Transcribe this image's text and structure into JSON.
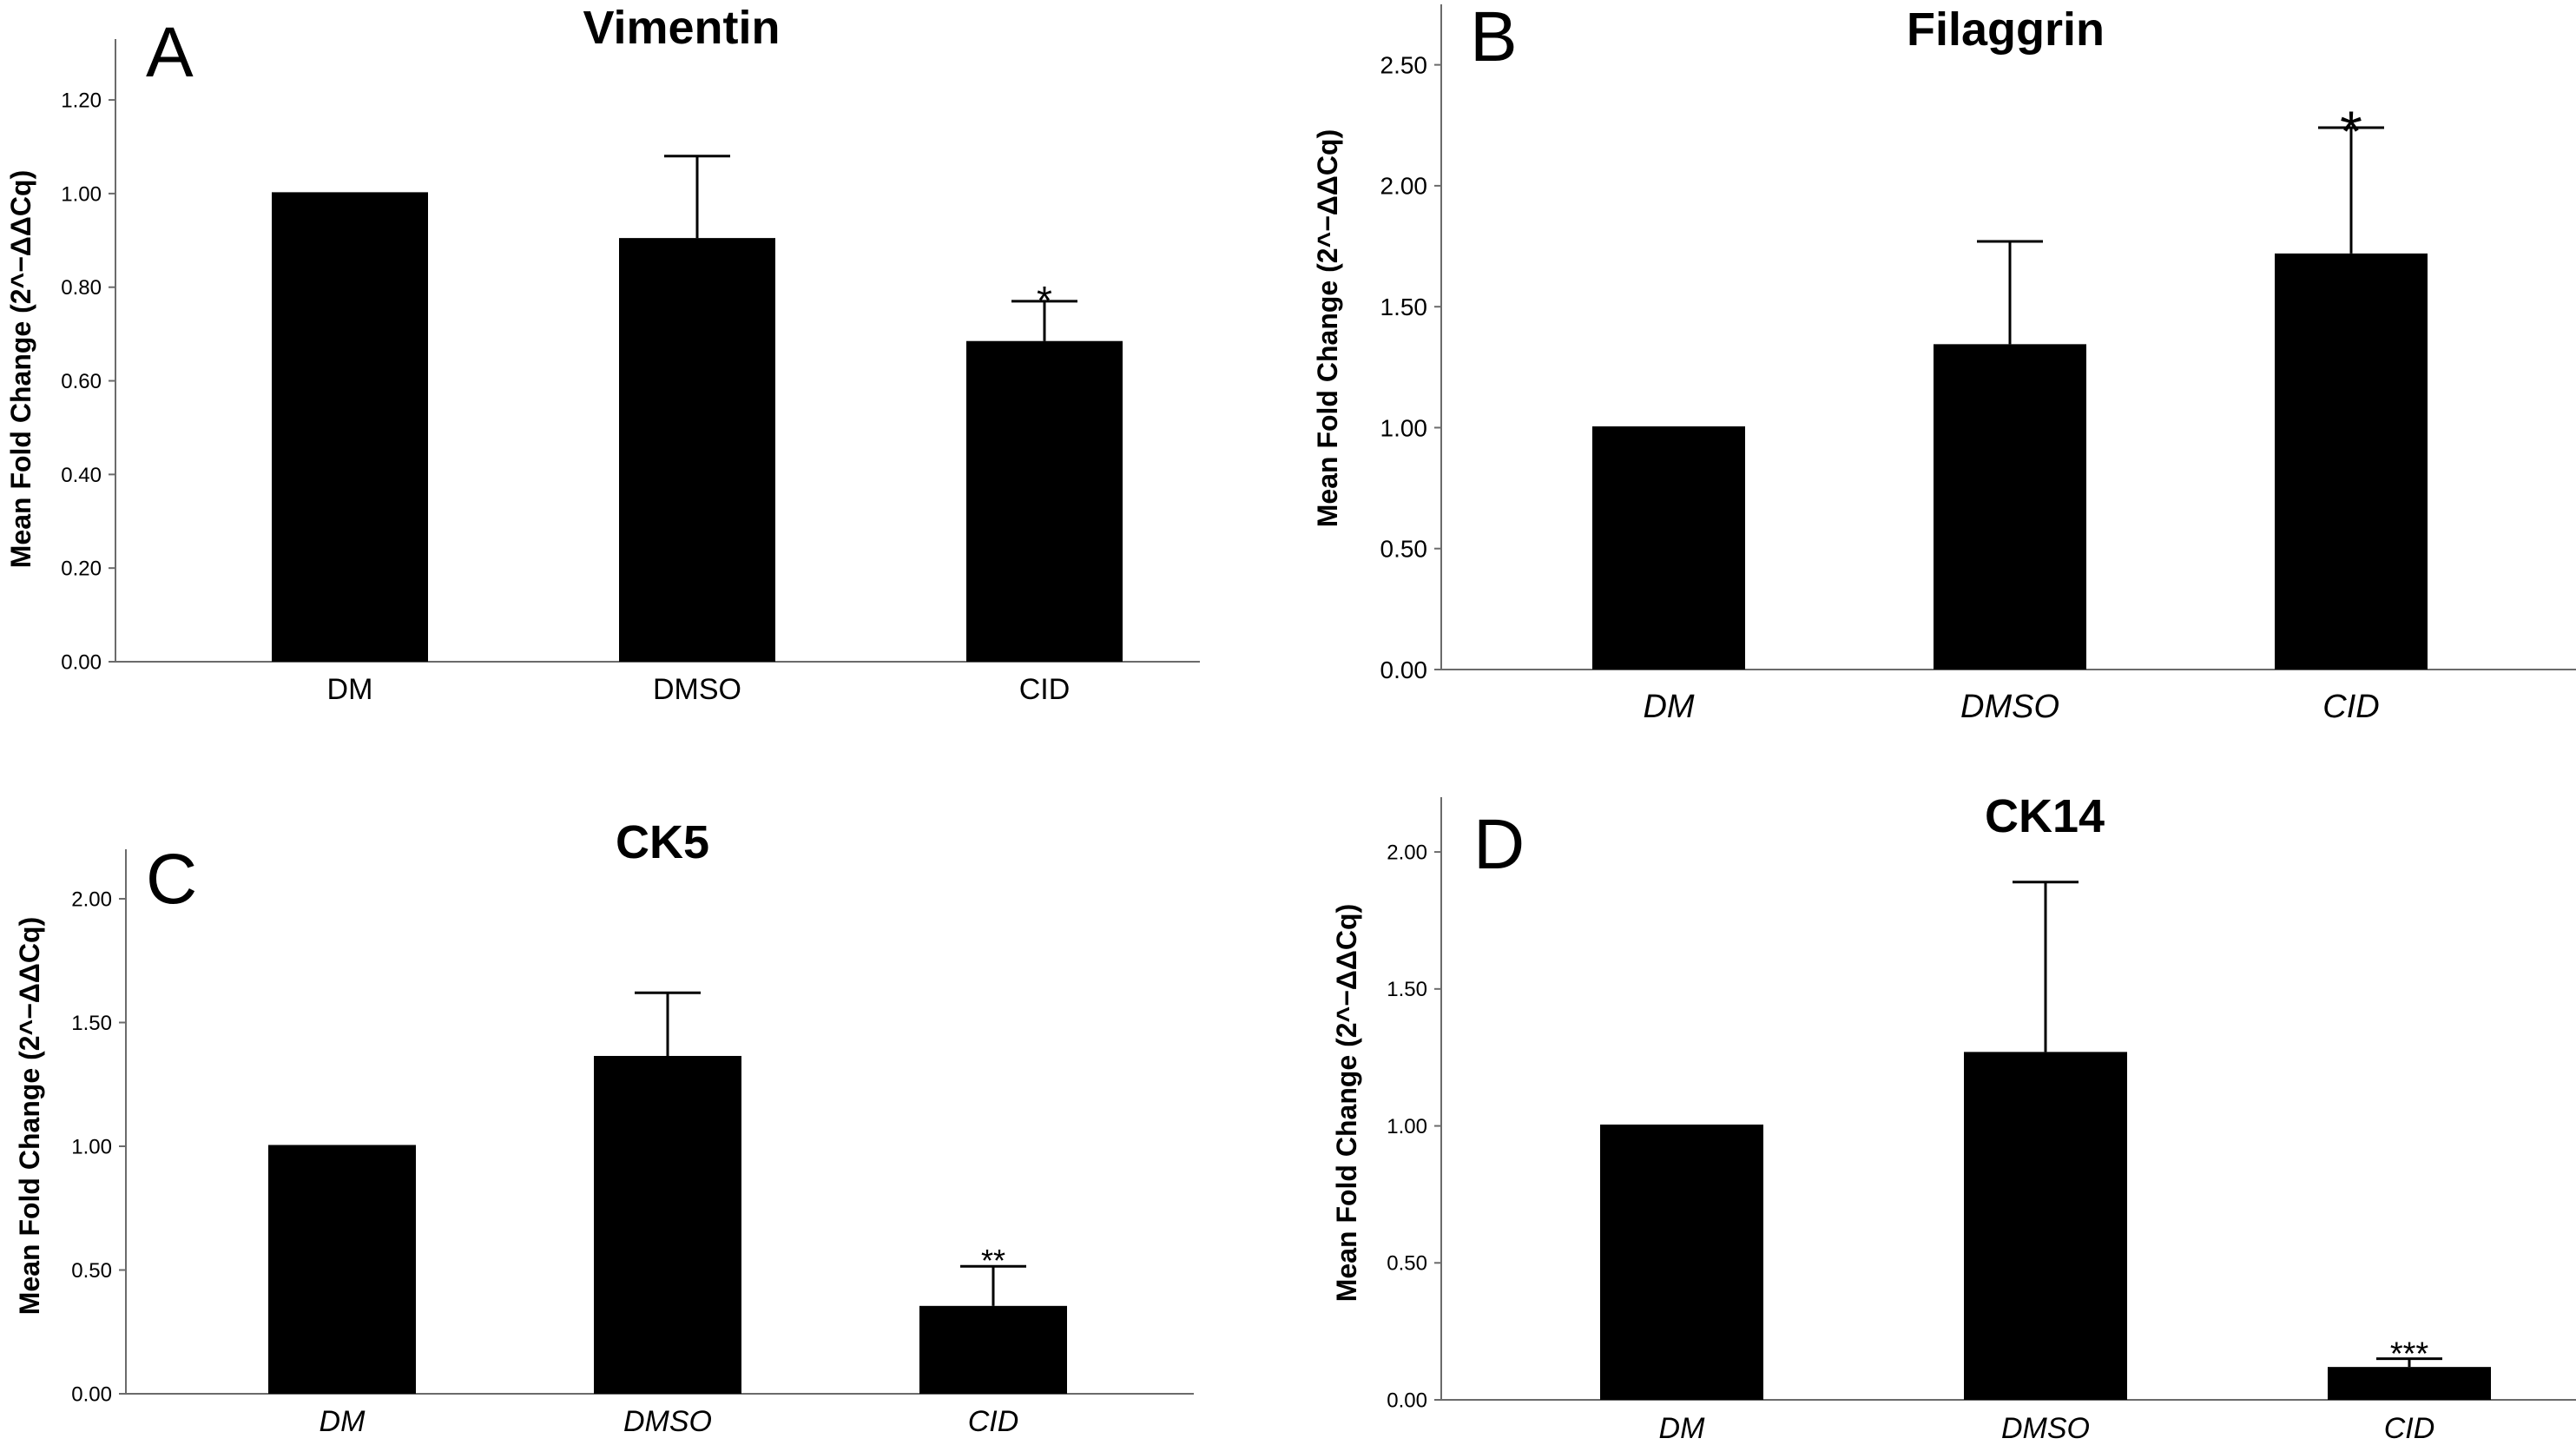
{
  "chart_data": [
    {
      "panel": "A",
      "type": "bar",
      "title": "Vimentin",
      "ylabel": "Mean Fold Change (2^−ΔΔCq)",
      "xlabel": "",
      "categories": [
        "DM",
        "DMSO",
        "CID"
      ],
      "category_style": "normal",
      "values": [
        1.0,
        0.905,
        0.685
      ],
      "error_upper": [
        1.0,
        1.08,
        0.77
      ],
      "significance": [
        "",
        "",
        "*"
      ],
      "ylim": [
        0,
        1.33
      ],
      "yticks": [
        0,
        0.2,
        0.4,
        0.6,
        0.8,
        1.0,
        1.2
      ],
      "ytick_labels": [
        "0.00",
        "0.20",
        "0.40",
        "0.60",
        "0.80",
        "1.00",
        "1.20"
      ],
      "bar_color": "#000000"
    },
    {
      "panel": "B",
      "type": "bar",
      "title": "Filaggrin",
      "ylabel": "Mean Fold Change (2^−ΔΔCq)",
      "xlabel": "",
      "categories": [
        "DM",
        "DMSO",
        "CID"
      ],
      "category_style": "italic",
      "values": [
        1.0,
        1.345,
        1.72
      ],
      "error_upper": [
        1.0,
        1.77,
        2.24
      ],
      "significance": [
        "",
        "",
        "*"
      ],
      "ylim": [
        0,
        2.75
      ],
      "yticks": [
        0,
        0.5,
        1.0,
        1.5,
        2.0,
        2.5
      ],
      "ytick_labels": [
        "0.00",
        "0.50",
        "1.00",
        "1.50",
        "2.00",
        "2.50"
      ],
      "bar_color": "#000000"
    },
    {
      "panel": "C",
      "type": "bar",
      "title": "CK5",
      "ylabel": "Mean Fold Change (2^−ΔΔCq)",
      "xlabel": "",
      "categories": [
        "DM",
        "DMSO",
        "CID"
      ],
      "category_style": "italic",
      "values": [
        1.0,
        1.365,
        0.355
      ],
      "error_upper": [
        1.0,
        1.62,
        0.515
      ],
      "significance": [
        "",
        "",
        "**"
      ],
      "ylim": [
        0,
        2.2
      ],
      "yticks": [
        0,
        0.5,
        1.0,
        1.5,
        2.0
      ],
      "ytick_labels": [
        "0.00",
        "0.50",
        "1.00",
        "1.50",
        "2.00"
      ],
      "bar_color": "#000000"
    },
    {
      "panel": "D",
      "type": "bar",
      "title": "CK14",
      "ylabel": "Mean Fold Change (2^−ΔΔCq)",
      "xlabel": "",
      "categories": [
        "DM",
        "DMSO",
        "CID"
      ],
      "category_style": "italic",
      "values": [
        1.0,
        1.27,
        0.12
      ],
      "error_upper": [
        1.0,
        1.89,
        0.15
      ],
      "significance": [
        "",
        "",
        "***"
      ],
      "ylim": [
        0,
        2.2
      ],
      "yticks": [
        0,
        0.5,
        1.0,
        1.5,
        2.0
      ],
      "ytick_labels": [
        "0.00",
        "0.50",
        "1.00",
        "1.50",
        "2.00"
      ],
      "bar_color": "#000000"
    }
  ]
}
